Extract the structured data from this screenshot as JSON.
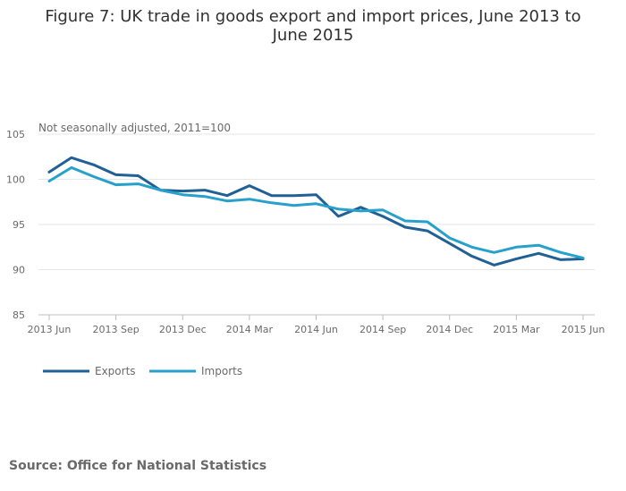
{
  "title": "Figure 7: UK trade in goods export and import prices, June 2013 to June 2015",
  "source": "Source: Office for National Statistics",
  "chart_data": {
    "type": "line",
    "title": "Figure 7: UK trade in goods export and import prices, June 2013 to June 2015",
    "subtitle": "Not seasonally adjusted, 2011=100",
    "xlabel": "",
    "ylabel": "",
    "ylim": [
      85,
      105
    ],
    "yticks": [
      85,
      90,
      95,
      100,
      105
    ],
    "grid": true,
    "legend_position": "bottom-left",
    "x": [
      "2013 Jun",
      "2013 Jul",
      "2013 Aug",
      "2013 Sep",
      "2013 Oct",
      "2013 Nov",
      "2013 Dec",
      "2014 Jan",
      "2014 Feb",
      "2014 Mar",
      "2014 Apr",
      "2014 May",
      "2014 Jun",
      "2014 Jul",
      "2014 Aug",
      "2014 Sep",
      "2014 Oct",
      "2014 Nov",
      "2014 Dec",
      "2015 Jan",
      "2015 Feb",
      "2015 Mar",
      "2015 Apr",
      "2015 May",
      "2015 Jun"
    ],
    "x_tick_labels": [
      "2013 Jun",
      "2013 Sep",
      "2013 Dec",
      "2014 Mar",
      "2014 Jun",
      "2014 Sep",
      "2014 Dec",
      "2015 Mar",
      "2015 Jun"
    ],
    "series": [
      {
        "name": "Exports",
        "color": "#206095",
        "values": [
          100.8,
          102.4,
          101.6,
          100.5,
          100.4,
          98.8,
          98.7,
          98.8,
          98.2,
          99.3,
          98.2,
          98.2,
          98.3,
          95.9,
          96.9,
          95.9,
          94.7,
          94.3,
          92.9,
          91.5,
          90.5,
          91.2,
          91.8,
          91.1,
          91.2
        ]
      },
      {
        "name": "Imports",
        "color": "#27a0cc",
        "values": [
          99.8,
          101.3,
          100.3,
          99.4,
          99.5,
          98.8,
          98.3,
          98.1,
          97.6,
          97.8,
          97.4,
          97.1,
          97.3,
          96.7,
          96.5,
          96.6,
          95.4,
          95.3,
          93.5,
          92.5,
          91.9,
          92.5,
          92.7,
          91.9,
          91.3
        ]
      }
    ]
  }
}
